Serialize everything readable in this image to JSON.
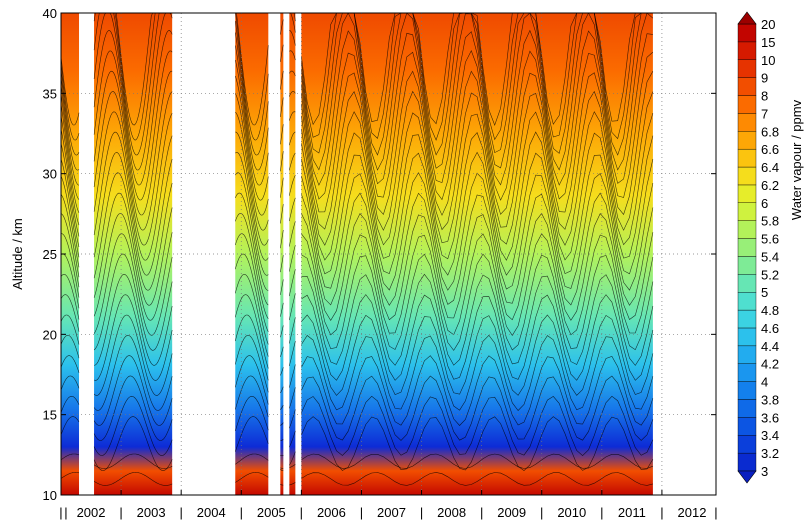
{
  "chart_data": {
    "type": "heatmap",
    "title": "",
    "xlabel": "",
    "ylabel": "Altitude / km",
    "xlim": [
      2002,
      2012.9
    ],
    "ylim": [
      10,
      40
    ],
    "x_tick_labels": [
      "2002",
      "2003",
      "2004",
      "2005",
      "2006",
      "2007",
      "2008",
      "2009",
      "2010",
      "2011",
      "2012"
    ],
    "y_ticks": [
      10,
      15,
      20,
      25,
      30,
      35,
      40
    ],
    "grid": true,
    "data_intervals": [
      [
        2002.0,
        2002.3
      ],
      [
        2002.55,
        2003.85
      ],
      [
        2004.9,
        2005.45
      ],
      [
        2005.65,
        2005.7
      ],
      [
        2005.8,
        2005.9
      ],
      [
        2006.0,
        2011.85
      ]
    ],
    "colorbar": {
      "label": "Water vapour / ppmv",
      "levels": [
        "3",
        "3.2",
        "3.4",
        "3.6",
        "3.8",
        "4",
        "4.2",
        "4.4",
        "4.6",
        "4.8",
        "5",
        "5.2",
        "5.4",
        "5.6",
        "5.8",
        "6",
        "6.2",
        "6.4",
        "6.6",
        "6.8",
        "7",
        "8",
        "9",
        "10",
        "15",
        "20"
      ],
      "colors": [
        "#0a2bd0",
        "#0b3fdb",
        "#0c55e3",
        "#0f6ae8",
        "#1380ec",
        "#1a96ef",
        "#22acef",
        "#2cc1ec",
        "#3bd3e3",
        "#4fdfcf",
        "#66e6b4",
        "#7eeb96",
        "#98ef78",
        "#b3f25a",
        "#cff23f",
        "#e6ed2a",
        "#f5dd1c",
        "#fbc40f",
        "#fda706",
        "#fe8a02",
        "#fb6b00",
        "#f24e00",
        "#e63300",
        "#d61a00",
        "#c20500",
        "#9c0000"
      ]
    }
  }
}
